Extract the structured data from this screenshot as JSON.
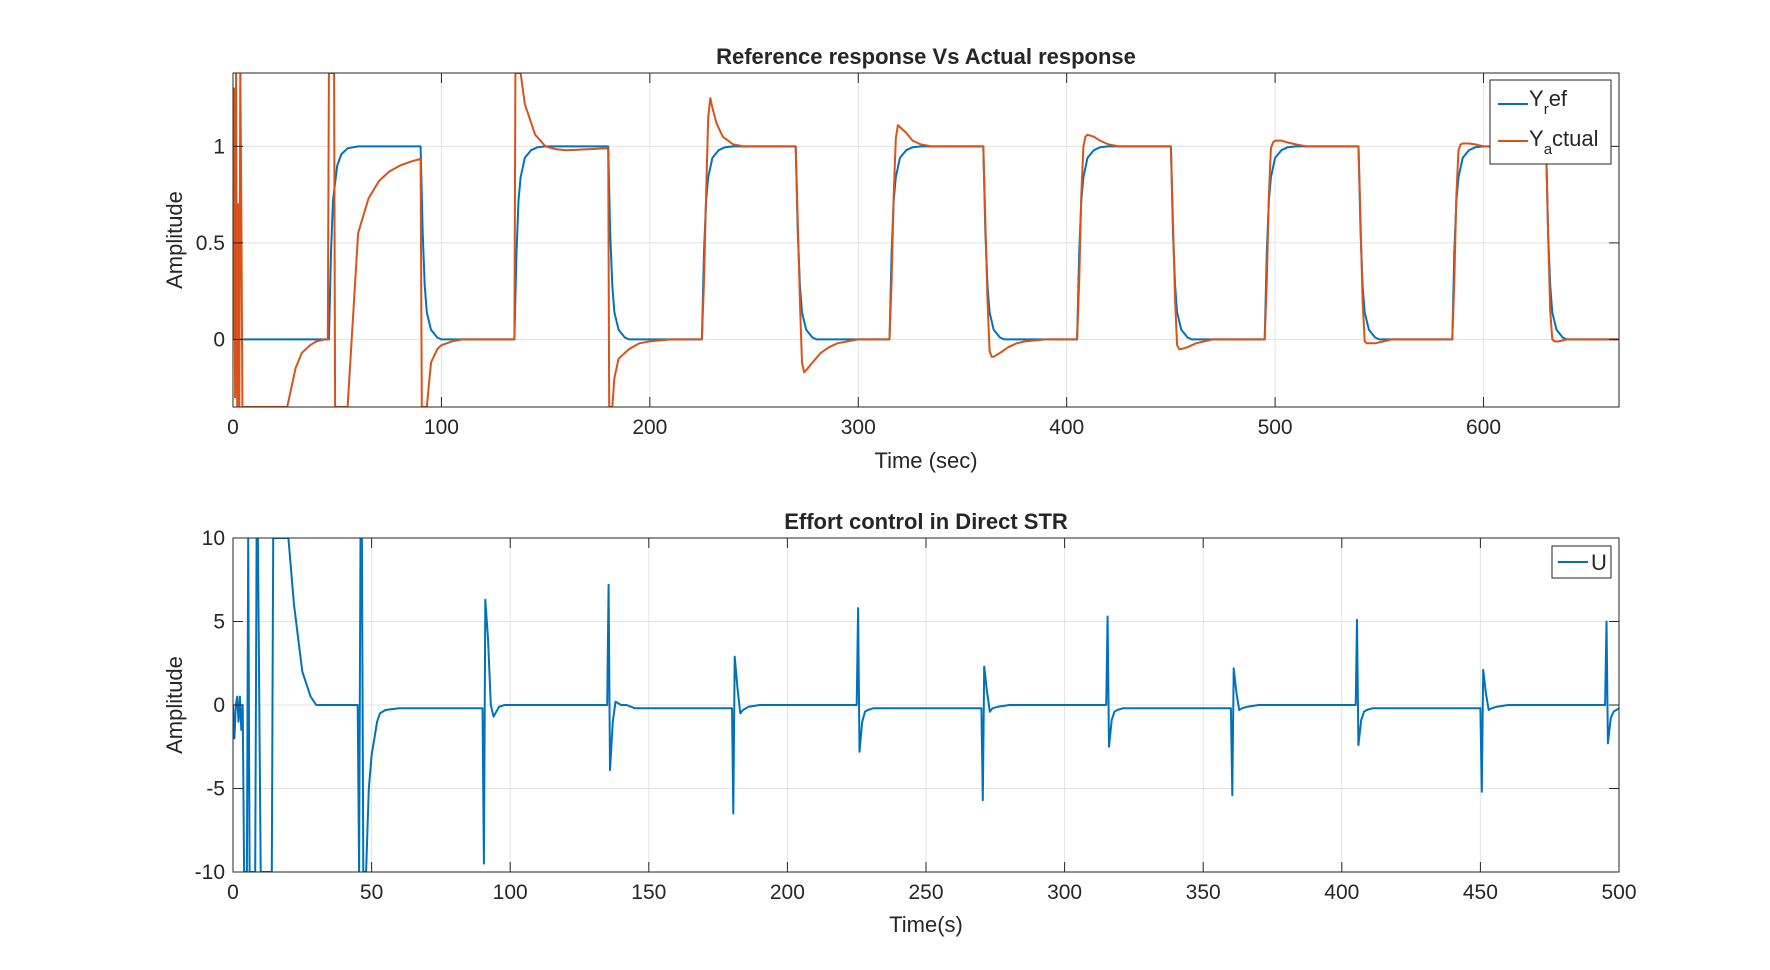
{
  "chart_data": [
    {
      "type": "line",
      "title": "Reference response Vs Actual response",
      "xlabel": "Time (sec)",
      "ylabel": "Amplitude",
      "xlim": [
        0,
        665
      ],
      "ylim": [
        -0.35,
        1.38
      ],
      "xticks": [
        0,
        100,
        200,
        300,
        400,
        500,
        600
      ],
      "xtick_labels": [
        "0",
        "100",
        "200",
        "300",
        "400",
        "500",
        "600"
      ],
      "yticks": [
        0,
        0.5,
        1
      ],
      "ytick_labels": [
        "0",
        "0.5",
        "1"
      ],
      "grid": true,
      "legend_position": "top-right",
      "legend_entries": [
        {
          "main": "Y",
          "sub": "r",
          "rest": "ef"
        },
        {
          "main": "Y",
          "sub": "a",
          "rest": "ctual"
        }
      ],
      "series": [
        {
          "name": "Y_ref",
          "color": "#0072BD",
          "x": [
            0,
            4,
            46,
            47,
            48,
            50,
            52,
            55,
            60,
            70,
            80,
            90,
            91,
            92,
            93,
            95,
            98,
            100,
            110,
            120,
            135,
            136,
            137,
            138,
            140,
            143,
            146,
            150,
            160,
            180,
            181,
            182,
            183,
            185,
            188,
            190,
            200,
            210,
            225,
            226,
            227,
            228,
            230,
            233,
            236,
            240,
            250,
            270,
            271,
            272,
            273,
            275,
            278,
            280,
            290,
            300,
            315,
            316,
            317,
            318,
            320,
            323,
            326,
            330,
            340,
            360,
            361,
            362,
            363,
            365,
            368,
            370,
            380,
            390,
            405,
            406,
            407,
            408,
            410,
            413,
            416,
            420,
            430,
            450,
            451,
            452,
            453,
            455,
            458,
            460,
            470,
            480,
            495,
            496,
            497,
            498,
            500,
            503,
            506,
            510,
            520,
            540,
            541,
            542,
            543,
            545,
            548,
            550,
            560,
            570,
            585,
            586,
            587,
            588,
            590,
            593,
            596,
            600,
            610,
            630,
            631,
            632,
            633,
            635,
            638,
            640,
            650,
            665
          ],
          "y": [
            0,
            0,
            0,
            0.45,
            0.72,
            0.9,
            0.96,
            0.99,
            1,
            1,
            1,
            1,
            0.55,
            0.28,
            0.14,
            0.05,
            0.01,
            0,
            0,
            0,
            0,
            0.45,
            0.72,
            0.84,
            0.94,
            0.98,
            0.995,
            1,
            1,
            1,
            0.55,
            0.28,
            0.14,
            0.05,
            0.01,
            0,
            0,
            0,
            0,
            0.45,
            0.72,
            0.84,
            0.94,
            0.98,
            0.995,
            1,
            1,
            1,
            0.55,
            0.28,
            0.14,
            0.05,
            0.01,
            0,
            0,
            0,
            0,
            0.45,
            0.72,
            0.84,
            0.94,
            0.98,
            0.995,
            1,
            1,
            1,
            0.55,
            0.28,
            0.14,
            0.05,
            0.01,
            0,
            0,
            0,
            0,
            0.45,
            0.72,
            0.84,
            0.94,
            0.98,
            0.995,
            1,
            1,
            1,
            0.55,
            0.28,
            0.14,
            0.05,
            0.01,
            0,
            0,
            0,
            0,
            0.45,
            0.72,
            0.84,
            0.94,
            0.98,
            0.995,
            1,
            1,
            1,
            0.55,
            0.28,
            0.14,
            0.05,
            0.01,
            0,
            0,
            0,
            0,
            0.45,
            0.72,
            0.84,
            0.94,
            0.98,
            0.995,
            1,
            1,
            1,
            0.55,
            0.28,
            0.14,
            0.05,
            0.01,
            0,
            0,
            0
          ]
        },
        {
          "name": "Y_actual",
          "color": "#D95319",
          "x": [
            0,
            0.5,
            1,
            1.5,
            2,
            2.5,
            3,
            3.5,
            4,
            4.5,
            5,
            6,
            10,
            20,
            26,
            28,
            30,
            33,
            37,
            40,
            44,
            45.5,
            46,
            46.5,
            47,
            48,
            48.5,
            49,
            49.5,
            50,
            55,
            60,
            65,
            70,
            75,
            80,
            85,
            90,
            90.6,
            91,
            91.5,
            92,
            93,
            95,
            98,
            100,
            105,
            110,
            120,
            135,
            135.5,
            136,
            137,
            138,
            140,
            145,
            150,
            155,
            160,
            170,
            180,
            180.5,
            181,
            182,
            183,
            185,
            190,
            195,
            200,
            210,
            225,
            226,
            227,
            228,
            229,
            230,
            232,
            235,
            240,
            245,
            250,
            270,
            271,
            272,
            273,
            274,
            275,
            278,
            282,
            286,
            290,
            300,
            315,
            316,
            317,
            318,
            319,
            320,
            323,
            326,
            330,
            335,
            340,
            360,
            361,
            362,
            363,
            364,
            365,
            368,
            372,
            376,
            380,
            390,
            405,
            406,
            407,
            408,
            409,
            410,
            413,
            416,
            420,
            425,
            430,
            450,
            451,
            452,
            453,
            454,
            455,
            458,
            462,
            466,
            470,
            480,
            495,
            496,
            497,
            498,
            499,
            500,
            503,
            506,
            510,
            515,
            520,
            540,
            541,
            542,
            543,
            544,
            545,
            548,
            552,
            556,
            560,
            570,
            585,
            586,
            587,
            588,
            589,
            590,
            593,
            596,
            600,
            605,
            610,
            630,
            631,
            632,
            633,
            634,
            636,
            640,
            650,
            665
          ],
          "y": [
            0,
            1.3,
            -0.3,
            1.4,
            -0.35,
            0.7,
            -0.35,
            1.4,
            0.7,
            -0.35,
            -0.35,
            -0.35,
            -0.35,
            -0.35,
            -0.35,
            -0.25,
            -0.15,
            -0.07,
            -0.03,
            -0.01,
            0,
            0,
            1.38,
            1.38,
            1.38,
            1.38,
            1.38,
            -0.35,
            -0.35,
            -0.35,
            -0.35,
            0.55,
            0.73,
            0.82,
            0.87,
            0.9,
            0.92,
            0.935,
            -0.35,
            -0.35,
            -0.35,
            -0.35,
            -0.35,
            -0.12,
            -0.05,
            -0.03,
            -0.01,
            0,
            0,
            0,
            1.38,
            1.38,
            1.38,
            1.38,
            1.22,
            1.06,
            1.0,
            0.985,
            0.98,
            0.985,
            0.99,
            -0.35,
            -0.35,
            -0.35,
            -0.2,
            -0.1,
            -0.05,
            -0.02,
            -0.01,
            0,
            0,
            0.3,
            0.75,
            1.15,
            1.25,
            1.2,
            1.12,
            1.05,
            1.01,
            1.0,
            1.0,
            1.0,
            0.6,
            0.2,
            -0.12,
            -0.17,
            -0.16,
            -0.12,
            -0.07,
            -0.04,
            -0.02,
            0,
            0,
            0.3,
            0.75,
            1.04,
            1.11,
            1.1,
            1.07,
            1.03,
            1.01,
            1.0,
            1.0,
            1.0,
            0.6,
            0.2,
            -0.06,
            -0.09,
            -0.09,
            -0.07,
            -0.04,
            -0.02,
            -0.01,
            0,
            0,
            0.3,
            0.75,
            1.0,
            1.05,
            1.06,
            1.05,
            1.03,
            1.01,
            1.0,
            1.0,
            1.0,
            0.6,
            0.2,
            -0.03,
            -0.05,
            -0.05,
            -0.04,
            -0.02,
            -0.01,
            0,
            0,
            0,
            0.3,
            0.75,
            0.99,
            1.02,
            1.03,
            1.03,
            1.02,
            1.01,
            1.0,
            1.0,
            1.0,
            0.6,
            0.2,
            -0.01,
            -0.02,
            -0.02,
            -0.02,
            -0.01,
            0,
            0,
            0,
            0,
            0.3,
            0.75,
            0.98,
            1.01,
            1.015,
            1.015,
            1.01,
            1.0,
            1.0,
            1.0,
            1.0,
            0.55,
            0.15,
            0,
            -0.01,
            -0.01,
            0,
            0,
            0
          ]
        }
      ]
    },
    {
      "type": "line",
      "title": "Effort control in Direct STR",
      "xlabel": "Time(s)",
      "ylabel": "Amplitude",
      "xlim": [
        0,
        500
      ],
      "ylim": [
        -10,
        10
      ],
      "xticks": [
        0,
        50,
        100,
        150,
        200,
        250,
        300,
        350,
        400,
        450,
        500
      ],
      "xtick_labels": [
        "0",
        "50",
        "100",
        "150",
        "200",
        "250",
        "300",
        "350",
        "400",
        "450",
        "500"
      ],
      "yticks": [
        -10,
        -5,
        0,
        5,
        10
      ],
      "ytick_labels": [
        "-10",
        "-5",
        "0",
        "5",
        "10"
      ],
      "grid": true,
      "legend_position": "top-right",
      "legend_entries": [
        {
          "main": "U",
          "sub": "",
          "rest": ""
        }
      ],
      "series": [
        {
          "name": "U",
          "color": "#0072BD",
          "x": [
            0,
            0.5,
            1,
            1.5,
            2,
            2.5,
            3,
            3.5,
            4,
            5,
            5.5,
            6,
            7,
            8,
            8.5,
            9,
            10,
            11,
            12,
            13,
            14,
            14.5,
            15,
            16,
            19,
            20,
            22,
            25,
            28,
            30,
            35,
            40,
            44,
            45,
            45.5,
            46,
            46.5,
            47,
            48,
            49,
            50,
            51,
            52,
            53,
            55,
            57,
            60,
            65,
            70,
            80,
            90,
            90.5,
            91,
            92,
            93,
            94,
            95,
            96,
            98,
            100,
            110,
            120,
            135,
            135.5,
            136,
            137,
            138,
            139,
            140,
            142,
            145,
            150,
            160,
            170,
            180,
            180.5,
            181,
            182,
            183,
            184,
            186,
            190,
            200,
            210,
            225,
            225.5,
            226,
            227,
            228,
            229,
            231,
            235,
            240,
            250,
            270,
            270.5,
            271,
            272,
            273,
            274,
            276,
            280,
            290,
            300,
            315,
            315.5,
            316,
            317,
            318,
            319,
            321,
            325,
            330,
            340,
            360,
            360.5,
            361,
            362,
            363,
            364,
            366,
            370,
            380,
            390,
            405,
            405.5,
            406,
            407,
            408,
            409,
            411,
            415,
            420,
            430,
            450,
            450.5,
            451,
            452,
            453,
            454,
            456,
            460,
            470,
            480,
            495,
            495.5,
            496,
            497,
            498,
            499,
            500
          ],
          "y": [
            0,
            -2,
            0,
            0.5,
            -1,
            0.5,
            -1.5,
            0,
            -10,
            -10,
            10,
            -10,
            -10,
            -10,
            10,
            10,
            -10,
            -10,
            -10,
            -10,
            -10,
            10,
            10,
            10,
            10,
            10,
            6,
            2,
            0.5,
            0,
            0,
            0,
            0,
            0,
            -10,
            10,
            10,
            -10,
            -10,
            -5,
            -3,
            -2,
            -1,
            -0.5,
            -0.3,
            -0.25,
            -0.2,
            -0.2,
            -0.2,
            -0.2,
            -0.2,
            -9.5,
            6.3,
            4,
            0,
            -0.7,
            -0.4,
            -0.1,
            0,
            0,
            0,
            0,
            0,
            7.2,
            -3.9,
            -1,
            0.2,
            0.1,
            0,
            0,
            -0.2,
            -0.2,
            -0.2,
            -0.2,
            -0.2,
            -6.5,
            2.9,
            1,
            -0.5,
            -0.3,
            -0.1,
            0,
            0,
            0,
            0,
            5.8,
            -2.8,
            -1,
            -0.4,
            -0.3,
            -0.2,
            -0.2,
            -0.2,
            -0.2,
            -0.2,
            -5.7,
            2.3,
            0.8,
            -0.4,
            -0.2,
            -0.1,
            0,
            0,
            0,
            0,
            5.3,
            -2.5,
            -0.9,
            -0.4,
            -0.3,
            -0.2,
            -0.2,
            -0.2,
            -0.2,
            -0.2,
            -5.4,
            2.2,
            0.7,
            -0.3,
            -0.2,
            -0.1,
            0,
            0,
            0,
            0,
            5.1,
            -2.4,
            -0.9,
            -0.4,
            -0.3,
            -0.2,
            -0.2,
            -0.2,
            -0.2,
            -0.2,
            -5.2,
            2.1,
            0.7,
            -0.3,
            -0.2,
            -0.1,
            0,
            0,
            0,
            0,
            5,
            -2.3,
            -0.8,
            -0.4,
            -0.3,
            -0.2
          ]
        }
      ]
    }
  ]
}
